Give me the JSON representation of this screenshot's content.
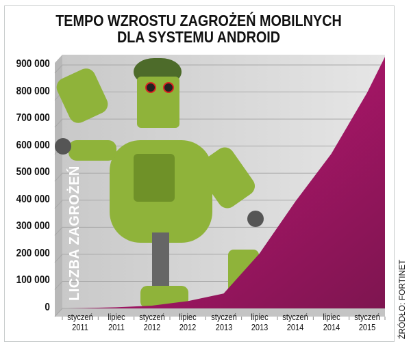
{
  "chart_data": {
    "type": "area",
    "title": "TEMPO WZROSTU ZAGROŻEŃ MOBILNYCH DLA SYSTEMU ANDROID",
    "title_lines": [
      "TEMPO WZROSTU ZAGROŻEŃ MOBILNYCH",
      "DLA SYSTEMU ANDROID"
    ],
    "ylabel": "LICZBA ZAGROŻEŃ",
    "xlabel": "",
    "categories": [
      [
        "styczeń",
        "2011"
      ],
      [
        "lipiec",
        "2011"
      ],
      [
        "styczeń",
        "2012"
      ],
      [
        "lipiec",
        "2012"
      ],
      [
        "styczeń",
        "2013"
      ],
      [
        "lipiec",
        "2013"
      ],
      [
        "styczeń",
        "2014"
      ],
      [
        "lipiec",
        "2014"
      ],
      [
        "styczeń",
        "2015"
      ]
    ],
    "series": [
      {
        "values": [
          1000,
          4000,
          10000,
          27000,
          55000,
          203000,
          395000,
          571000,
          797000
        ],
        "end_value": 930000
      }
    ],
    "yticks": [
      "900 000",
      "800 000",
      "700 000",
      "600 000",
      "500 000",
      "400 000",
      "300 000",
      "200 000",
      "100 000",
      "0"
    ],
    "ytick_values": [
      900000,
      800000,
      700000,
      600000,
      500000,
      400000,
      300000,
      200000,
      100000,
      0
    ],
    "ylim": [
      0,
      940000
    ],
    "grid": true,
    "colors": {
      "area": "#b5156e",
      "wall": "#d8d8d8",
      "grid": "#a8a8a8"
    },
    "source": "ŹRÓDŁO: FORTINET"
  }
}
